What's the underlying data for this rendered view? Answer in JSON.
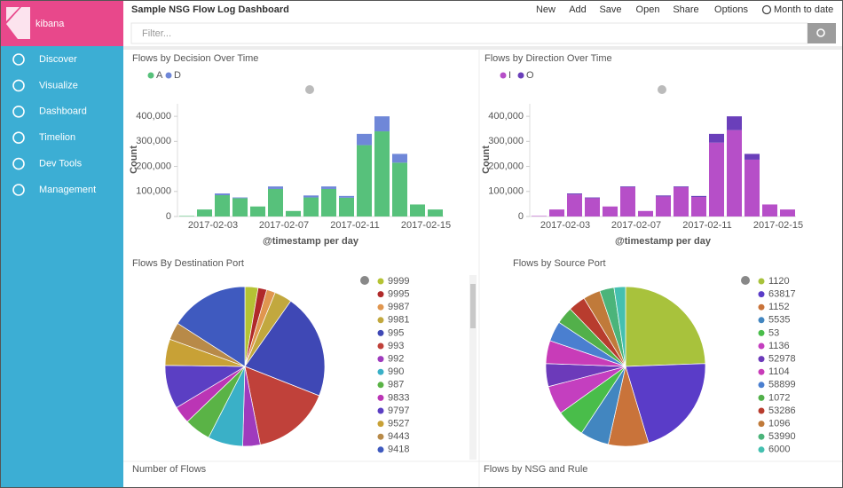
{
  "app": {
    "brand": "kibana",
    "nav": [
      "Discover",
      "Visualize",
      "Dashboard",
      "Timelion",
      "Dev Tools",
      "Management"
    ]
  },
  "topbar": {
    "title": "Sample NSG Flow Log Dashboard",
    "menu": [
      "New",
      "Add",
      "Save",
      "Open",
      "Share",
      "Options"
    ],
    "time": "Month to date",
    "filter_placeholder": "Filter..."
  },
  "panels": [
    {
      "type": "bar",
      "stacked": true,
      "title": "Flows by Decision Over Time",
      "xlabel": "@timestamp per day",
      "ylabel": "Count",
      "categories": [
        null,
        null,
        "2017-02-03",
        null,
        null,
        null,
        "2017-02-07",
        null,
        null,
        null,
        "2017-02-11",
        null,
        null,
        null,
        "2017-02-15"
      ],
      "series": [
        {
          "name": "A",
          "color": "#57c17b",
          "values": [
            2000,
            28000,
            85000,
            73000,
            40000,
            110000,
            22000,
            76000,
            110000,
            75000,
            285000,
            340000,
            215000,
            48000,
            28000
          ]
        },
        {
          "name": "D",
          "color": "#6f87d8",
          "values": [
            0,
            0,
            7000,
            3000,
            0,
            10000,
            0,
            8000,
            10000,
            7000,
            45000,
            60000,
            35000,
            0,
            0
          ]
        }
      ],
      "ylim": [
        0,
        450000
      ],
      "yticks": [
        0,
        {
          "value": 100000,
          "label": "100,000"
        },
        {
          "value": 200000,
          "label": "200,000"
        },
        {
          "value": 300000,
          "label": "300,000"
        },
        {
          "value": 400000,
          "label": "400,000"
        }
      ]
    },
    {
      "type": "bar",
      "stacked": true,
      "title": "Flows by Direction Over Time",
      "xlabel": "@timestamp per day",
      "ylabel": "Count",
      "categories": [
        null,
        null,
        "2017-02-03",
        null,
        null,
        null,
        "2017-02-07",
        null,
        null,
        null,
        "2017-02-11",
        null,
        null,
        null,
        "2017-02-15"
      ],
      "series": [
        {
          "name": "I",
          "color": "#b64fc8",
          "values": [
            2000,
            28000,
            88000,
            73000,
            40000,
            117000,
            22000,
            80000,
            117000,
            78000,
            295000,
            345000,
            227000,
            48000,
            28000
          ]
        },
        {
          "name": "O",
          "color": "#6a3fba",
          "values": [
            0,
            0,
            4000,
            3000,
            0,
            3000,
            0,
            4000,
            3000,
            4000,
            35000,
            55000,
            23000,
            0,
            0
          ]
        }
      ],
      "ylim": [
        0,
        450000
      ],
      "yticks": [
        0,
        {
          "value": 100000,
          "label": "100,000"
        },
        {
          "value": 200000,
          "label": "200,000"
        },
        {
          "value": 300000,
          "label": "300,000"
        },
        {
          "value": 400000,
          "label": "400,000"
        }
      ]
    },
    {
      "type": "pie",
      "title": "Flows By Destination Port",
      "categories": [
        "9999",
        "9995",
        "9987",
        "9981",
        "995",
        "993",
        "992",
        "990",
        "987",
        "9833",
        "9797",
        "9527",
        "9443",
        "9418"
      ],
      "values": [
        1.5,
        1,
        1,
        2,
        12,
        9,
        2,
        4,
        3,
        2,
        5,
        3,
        2,
        9
      ],
      "colors": [
        "#b5c334",
        "#b02a2a",
        "#e0964f",
        "#c2a83e",
        "#3f48b5",
        "#c0413a",
        "#9f3bbd",
        "#3ab0c7",
        "#5ab346",
        "#bb35b5",
        "#5b3fc3",
        "#c8a136",
        "#b88a48",
        "#3f5abf"
      ]
    },
    {
      "type": "pie",
      "title": "Flows by Source Port",
      "categories": [
        "1120",
        "63817",
        "1152",
        "5535",
        "53",
        "1136",
        "52978",
        "1104",
        "58899",
        "1072",
        "53286",
        "1096",
        "53990",
        "6000"
      ],
      "values": [
        21,
        18,
        7,
        5,
        5,
        5,
        4,
        4,
        3.5,
        3,
        3,
        3,
        2.5,
        2
      ],
      "colors": [
        "#a8c23c",
        "#5a3cc8",
        "#c9733a",
        "#4286c0",
        "#49bd4a",
        "#c43fbf",
        "#6c3aba",
        "#c83cb8",
        "#4a7fd0",
        "#52b04a",
        "#b83c2e",
        "#c07a3a",
        "#4bb47a",
        "#44c0b0"
      ]
    },
    {
      "title": "Number of Flows"
    },
    {
      "title": "Flows by NSG and Rule"
    }
  ]
}
